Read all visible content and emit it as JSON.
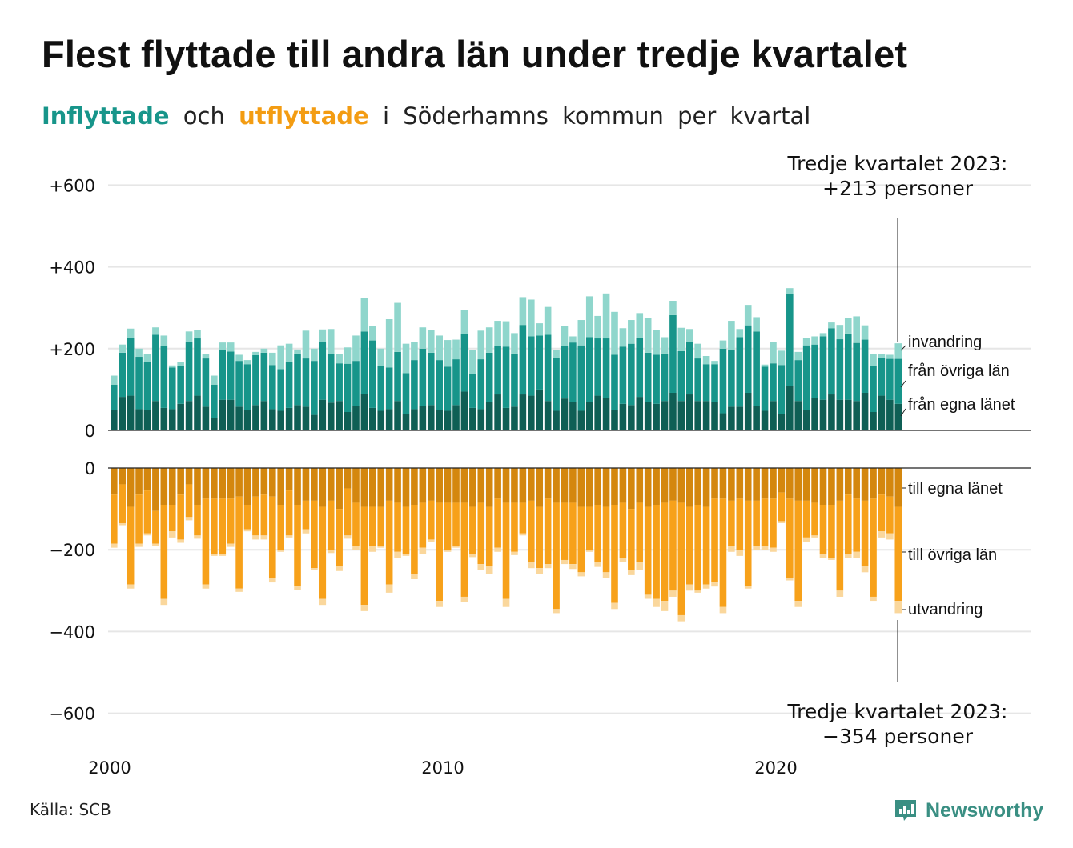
{
  "title": "Flest flyttade till andra län under tredje kvartalet",
  "subtitle": {
    "in_word": "Inflyttade",
    "mid": "och",
    "out_word": "utflyttade",
    "rest": "i Söderhamns kommun per kvartal"
  },
  "annotations": {
    "top_line1": "Tredje kvartalet 2023:",
    "top_line2": "+213 personer",
    "bottom_line1": "Tredje kvartalet 2023:",
    "bottom_line2": "−354 personer"
  },
  "source": "Källa: SCB",
  "logo": {
    "text": "Newsworthy",
    "icon": "newsworthy-chart-icon"
  },
  "colors": {
    "in_egna": "#0f5f55",
    "in_ovriga": "#17958a",
    "in_invandring": "#8fd6cc",
    "out_egna": "#d4870e",
    "out_ovriga": "#f7a11a",
    "out_utvandring": "#fad79c",
    "grid": "#e6e6e6"
  },
  "chart_data": [
    {
      "type": "bar",
      "stacked": true,
      "panel": "inflyttade",
      "x_start": "2000 Q1",
      "x_end": "2023 Q3",
      "x_ticks": [
        "2000",
        "2010",
        "2020"
      ],
      "y_ticks": [
        "+600",
        "+400",
        "+200",
        "0"
      ],
      "ylim": [
        0,
        600
      ],
      "grid": true,
      "series": [
        {
          "name": "från egna länet",
          "values": [
            50,
            82,
            85,
            52,
            50,
            72,
            55,
            52,
            65,
            72,
            85,
            58,
            30,
            75,
            75,
            58,
            50,
            62,
            72,
            52,
            48,
            55,
            62,
            58,
            38,
            75,
            68,
            72,
            45,
            60,
            90,
            55,
            48,
            52,
            72,
            40,
            52,
            60,
            62,
            50,
            48,
            62,
            95,
            55,
            52,
            70,
            88,
            55,
            58,
            88,
            85,
            100,
            72,
            48,
            78,
            70,
            48,
            70,
            85,
            80,
            50,
            65,
            62,
            82,
            70,
            65,
            72,
            92,
            72,
            88,
            72,
            72,
            70,
            42,
            58,
            58,
            92,
            60,
            48,
            72,
            40,
            108,
            72,
            50,
            80,
            75,
            88,
            75,
            75,
            72,
            92,
            45,
            85,
            75,
            65
          ]
        },
        {
          "name": "från övriga län",
          "values": [
            62,
            108,
            142,
            128,
            118,
            162,
            152,
            102,
            92,
            145,
            140,
            118,
            82,
            122,
            118,
            112,
            112,
            122,
            118,
            108,
            102,
            112,
            126,
            118,
            132,
            142,
            118,
            92,
            118,
            110,
            152,
            165,
            110,
            102,
            120,
            100,
            120,
            140,
            128,
            122,
            108,
            112,
            140,
            82,
            122,
            120,
            118,
            150,
            130,
            170,
            145,
            132,
            162,
            130,
            128,
            145,
            160,
            158,
            140,
            145,
            135,
            140,
            150,
            145,
            120,
            120,
            116,
            190,
            122,
            128,
            104,
            90,
            92,
            158,
            140,
            170,
            165,
            182,
            108,
            92,
            120,
            225,
            100,
            158,
            130,
            155,
            162,
            148,
            162,
            142,
            130,
            112,
            92,
            100,
            110
          ]
        },
        {
          "name": "invandring",
          "values": [
            22,
            20,
            22,
            20,
            18,
            18,
            25,
            5,
            10,
            25,
            20,
            10,
            22,
            18,
            22,
            15,
            10,
            8,
            10,
            30,
            58,
            45,
            10,
            68,
            30,
            30,
            62,
            22,
            40,
            62,
            82,
            35,
            42,
            118,
            120,
            72,
            45,
            52,
            55,
            60,
            65,
            48,
            60,
            60,
            70,
            62,
            62,
            62,
            50,
            68,
            90,
            30,
            68,
            18,
            50,
            15,
            62,
            100,
            55,
            110,
            105,
            45,
            58,
            60,
            85,
            60,
            40,
            35,
            57,
            32,
            36,
            20,
            8,
            20,
            70,
            20,
            50,
            35,
            5,
            52,
            35,
            15,
            20,
            18,
            20,
            8,
            14,
            35,
            38,
            65,
            35,
            30,
            9,
            10,
            38
          ]
        }
      ]
    },
    {
      "type": "bar",
      "stacked": true,
      "panel": "utflyttade",
      "x_start": "2000 Q1",
      "x_end": "2023 Q3",
      "x_ticks": [
        "2000",
        "2010",
        "2020"
      ],
      "y_ticks": [
        "0",
        "−200",
        "−400",
        "−600"
      ],
      "ylim": [
        -600,
        0
      ],
      "grid": true,
      "series": [
        {
          "name": "till egna länet",
          "values": [
            -65,
            -40,
            -95,
            -65,
            -55,
            -105,
            -90,
            -90,
            -65,
            -40,
            -90,
            -75,
            -75,
            -75,
            -75,
            -70,
            -90,
            -70,
            -65,
            -70,
            -90,
            -55,
            -90,
            -80,
            -80,
            -95,
            -80,
            -100,
            -50,
            -85,
            -95,
            -95,
            -95,
            -80,
            -85,
            -95,
            -90,
            -85,
            -80,
            -85,
            -85,
            -85,
            -85,
            -95,
            -85,
            -95,
            -75,
            -85,
            -85,
            -85,
            -80,
            -95,
            -75,
            -85,
            -85,
            -85,
            -95,
            -95,
            -90,
            -95,
            -90,
            -85,
            -100,
            -85,
            -95,
            -90,
            -85,
            -80,
            -85,
            -95,
            -90,
            -95,
            -75,
            -75,
            -80,
            -75,
            -80,
            -80,
            -75,
            -75,
            -60,
            -75,
            -80,
            -80,
            -85,
            -90,
            -90,
            -80,
            -65,
            -75,
            -80,
            -75,
            -65,
            -70,
            -95
          ]
        },
        {
          "name": "till övriga län",
          "values": [
            -120,
            -95,
            -190,
            -120,
            -105,
            -80,
            -230,
            -65,
            -110,
            -80,
            -75,
            -210,
            -135,
            -135,
            -110,
            -225,
            -60,
            -95,
            -100,
            -200,
            -110,
            -110,
            -200,
            -70,
            -165,
            -225,
            -120,
            -140,
            -115,
            -105,
            -240,
            -95,
            -95,
            -205,
            -120,
            -115,
            -170,
            -110,
            -95,
            -240,
            -115,
            -105,
            -230,
            -115,
            -150,
            -145,
            -120,
            -235,
            -120,
            -75,
            -150,
            -150,
            -160,
            -260,
            -140,
            -150,
            -160,
            -105,
            -140,
            -160,
            -240,
            -135,
            -150,
            -145,
            -215,
            -230,
            -240,
            -220,
            -275,
            -190,
            -210,
            -190,
            -205,
            -265,
            -110,
            -125,
            -210,
            -110,
            -115,
            -120,
            -70,
            -195,
            -245,
            -90,
            -80,
            -120,
            -130,
            -220,
            -145,
            -130,
            -160,
            -240,
            -90,
            -90,
            -230
          ]
        },
        {
          "name": "utvandring",
          "values": [
            -10,
            -5,
            -10,
            -8,
            -5,
            -5,
            -15,
            -15,
            -8,
            -8,
            -8,
            -10,
            -5,
            -5,
            -8,
            -8,
            -5,
            -10,
            -10,
            -10,
            -5,
            -5,
            -8,
            -10,
            -5,
            -15,
            -8,
            -12,
            -8,
            -10,
            -15,
            -15,
            -5,
            -20,
            -15,
            -5,
            -12,
            -15,
            -5,
            -15,
            -5,
            -5,
            -12,
            -8,
            -15,
            -20,
            -10,
            -20,
            -8,
            -5,
            -15,
            -15,
            -10,
            -10,
            -10,
            -12,
            -10,
            -5,
            -12,
            -15,
            -15,
            -10,
            -12,
            -20,
            -10,
            -20,
            -25,
            -15,
            -15,
            -15,
            -5,
            -10,
            -10,
            -15,
            -15,
            -15,
            -5,
            -10,
            -10,
            -10,
            -5,
            -5,
            -15,
            -10,
            -5,
            -10,
            -5,
            -15,
            -10,
            -15,
            -15,
            -10,
            -15,
            -15,
            -30
          ]
        }
      ]
    }
  ],
  "labels": {
    "in": [
      "invandring",
      "från övriga län",
      "från egna länet"
    ],
    "out": [
      "till egna länet",
      "till övriga län",
      "utvandring"
    ]
  }
}
